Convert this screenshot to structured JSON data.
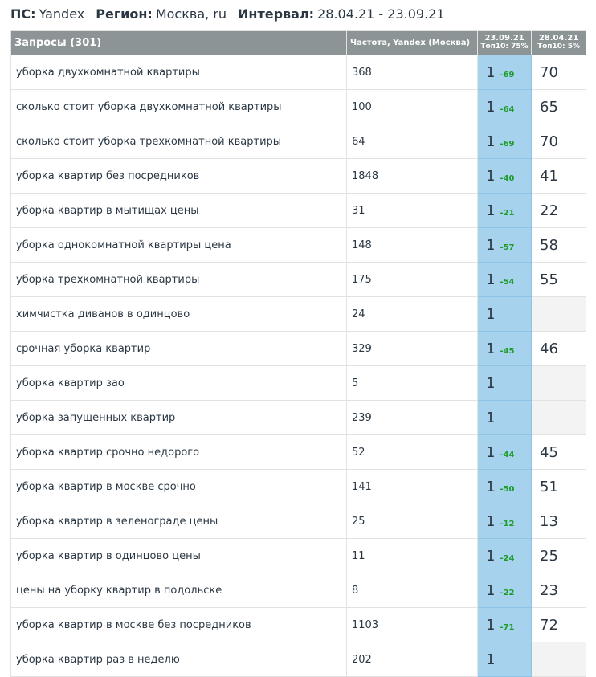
{
  "header": {
    "ps_label": "ПС:",
    "ps_value": "Yandex",
    "region_label": "Регион:",
    "region_value": "Москва, ru",
    "interval_label": "Интервал:",
    "interval_value": "28.04.21 - 23.09.21"
  },
  "table": {
    "columns": {
      "query": "Запросы (301)",
      "freq": "Частота, Yandex (Москва)",
      "d1_date": "23.09.21",
      "d1_top": "Топ10: 75%",
      "d2_date": "28.04.21",
      "d2_top": "Топ10: 5%"
    },
    "rows": [
      {
        "query": "уборка двухкомнатной квартиры",
        "freq": "368",
        "pos_new": "1",
        "delta": "-69",
        "pos_old": "70"
      },
      {
        "query": "сколько стоит уборка двухкомнатной квартиры",
        "freq": "100",
        "pos_new": "1",
        "delta": "-64",
        "pos_old": "65"
      },
      {
        "query": "сколько стоит уборка трехкомнатной квартиры",
        "freq": "64",
        "pos_new": "1",
        "delta": "-69",
        "pos_old": "70"
      },
      {
        "query": "уборка квартир без посредников",
        "freq": "1848",
        "pos_new": "1",
        "delta": "-40",
        "pos_old": "41"
      },
      {
        "query": "уборка квартир в мытищах цены",
        "freq": "31",
        "pos_new": "1",
        "delta": "-21",
        "pos_old": "22"
      },
      {
        "query": "уборка однокомнатной квартиры цена",
        "freq": "148",
        "pos_new": "1",
        "delta": "-57",
        "pos_old": "58"
      },
      {
        "query": "уборка трехкомнатной квартиры",
        "freq": "175",
        "pos_new": "1",
        "delta": "-54",
        "pos_old": "55"
      },
      {
        "query": "химчистка диванов в одинцово",
        "freq": "24",
        "pos_new": "1",
        "delta": "",
        "pos_old": ""
      },
      {
        "query": "срочная уборка квартир",
        "freq": "329",
        "pos_new": "1",
        "delta": "-45",
        "pos_old": "46"
      },
      {
        "query": "уборка квартир зао",
        "freq": "5",
        "pos_new": "1",
        "delta": "",
        "pos_old": ""
      },
      {
        "query": "уборка запущенных квартир",
        "freq": "239",
        "pos_new": "1",
        "delta": "",
        "pos_old": ""
      },
      {
        "query": "уборка квартир срочно недорого",
        "freq": "52",
        "pos_new": "1",
        "delta": "-44",
        "pos_old": "45"
      },
      {
        "query": "уборка квартир в москве срочно",
        "freq": "141",
        "pos_new": "1",
        "delta": "-50",
        "pos_old": "51"
      },
      {
        "query": "уборка квартир в зеленограде цены",
        "freq": "25",
        "pos_new": "1",
        "delta": "-12",
        "pos_old": "13"
      },
      {
        "query": "уборка квартир в одинцово цены",
        "freq": "11",
        "pos_new": "1",
        "delta": "-24",
        "pos_old": "25"
      },
      {
        "query": "цены на уборку квартир в подольске",
        "freq": "8",
        "pos_new": "1",
        "delta": "-22",
        "pos_old": "23"
      },
      {
        "query": "уборка квартир в москве без посредников",
        "freq": "1103",
        "pos_new": "1",
        "delta": "-71",
        "pos_old": "72"
      },
      {
        "query": "уборка квартир раз в неделю",
        "freq": "202",
        "pos_new": "1",
        "delta": "",
        "pos_old": ""
      }
    ]
  }
}
